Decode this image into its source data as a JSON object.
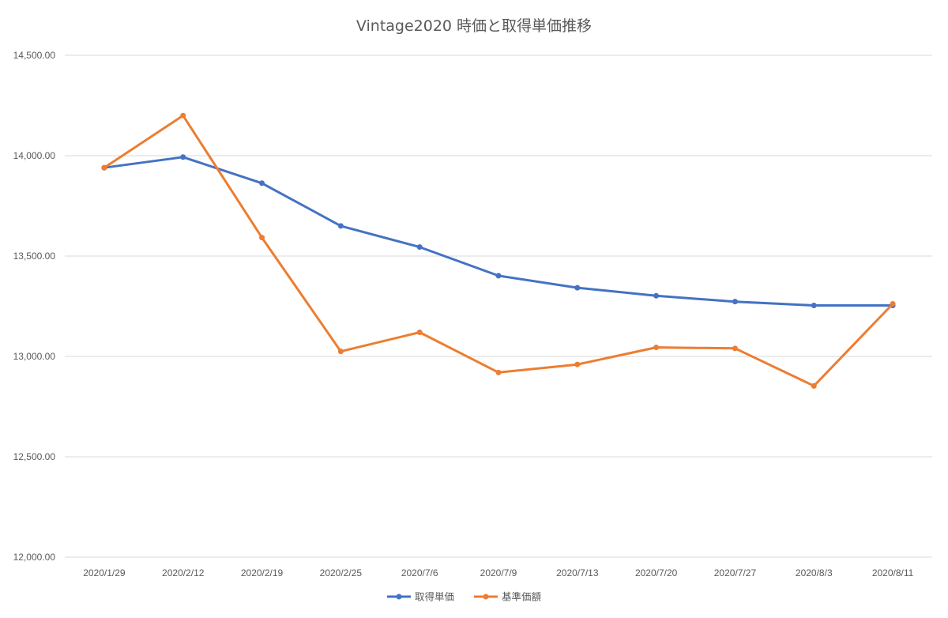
{
  "chart_data": {
    "type": "line",
    "title": "Vintage2020 時価と取得単価推移",
    "xlabel": "",
    "ylabel": "",
    "categories": [
      "2020/1/29",
      "2020/2/12",
      "2020/2/19",
      "2020/2/25",
      "2020/7/6",
      "2020/7/9",
      "2020/7/13",
      "2020/7/20",
      "2020/7/27",
      "2020/8/3",
      "2020/8/11"
    ],
    "ylim": [
      12000,
      14500
    ],
    "yticks": [
      12000,
      12500,
      13000,
      13500,
      14000,
      14500
    ],
    "ytick_labels": [
      "12,000.00",
      "12,500.00",
      "13,000.00",
      "13,500.00",
      "14,000.00",
      "14,500.00"
    ],
    "grid": true,
    "legend_position": "bottom",
    "series": [
      {
        "name": "取得単価",
        "color": "#4472C4",
        "values": [
          13940,
          13993,
          13863,
          13650,
          13545,
          13402,
          13342,
          13302,
          13273,
          13254,
          13254
        ]
      },
      {
        "name": "基準価額",
        "color": "#ED7D31",
        "values": [
          13940,
          14200,
          13592,
          13025,
          13120,
          12920,
          12960,
          13045,
          13040,
          12853,
          13262
        ]
      }
    ]
  }
}
